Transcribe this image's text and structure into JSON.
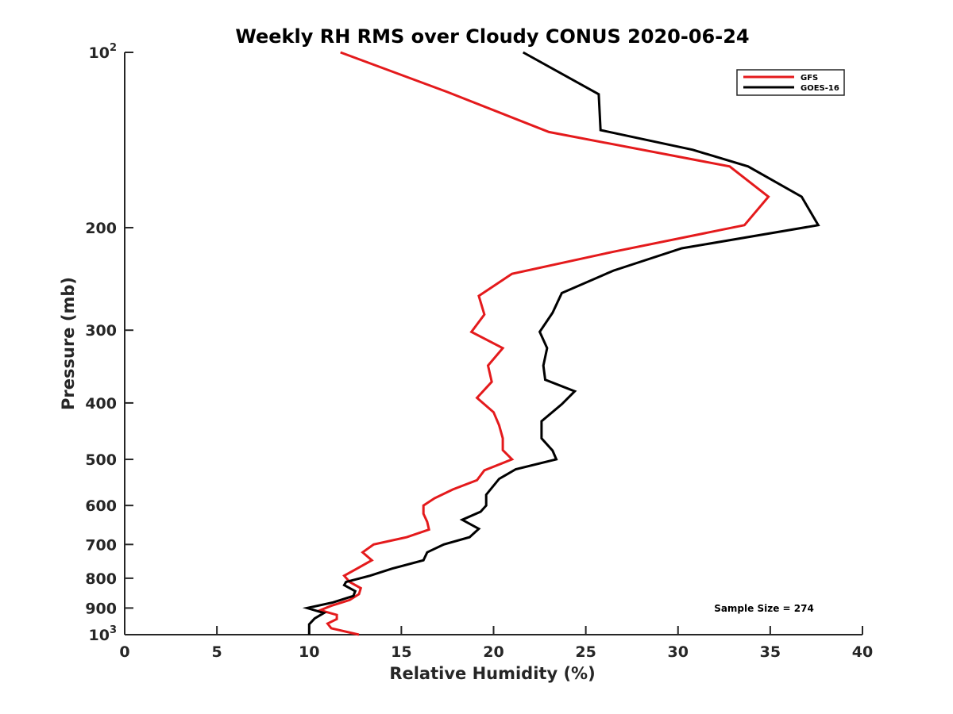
{
  "chart_data": {
    "type": "line",
    "title": "Weekly RH RMS over Cloudy CONUS 2020-06-24",
    "xlabel": "Relative Humidity (%)",
    "ylabel": "Pressure (mb)",
    "xlim": [
      0,
      40
    ],
    "ylim": [
      100,
      1000
    ],
    "y_scale": "log",
    "y_reversed": true,
    "grid": false,
    "legend_position": "top-right",
    "x_ticks": [
      0,
      5,
      10,
      15,
      20,
      25,
      30,
      35,
      40
    ],
    "y_ticks": [
      {
        "value": 100,
        "base": "10",
        "exp": "2"
      },
      {
        "value": 200,
        "label": "200"
      },
      {
        "value": 300,
        "label": "300"
      },
      {
        "value": 400,
        "label": "400"
      },
      {
        "value": 500,
        "label": "500"
      },
      {
        "value": 600,
        "label": "600"
      },
      {
        "value": 700,
        "label": "700"
      },
      {
        "value": 800,
        "label": "800"
      },
      {
        "value": 900,
        "label": "900"
      },
      {
        "value": 1000,
        "base": "10",
        "exp": "3"
      }
    ],
    "annotation": "Sample Size = 274",
    "series": [
      {
        "name": "GFS",
        "color": "#e41a1c",
        "points": [
          [
            11.7,
            100
          ],
          [
            17.5,
            117
          ],
          [
            23.0,
            137
          ],
          [
            32.8,
            157
          ],
          [
            34.9,
            177
          ],
          [
            33.6,
            198
          ],
          [
            26.5,
            220
          ],
          [
            21.0,
            240
          ],
          [
            19.2,
            262
          ],
          [
            19.5,
            282
          ],
          [
            18.8,
            302
          ],
          [
            20.5,
            322
          ],
          [
            19.7,
            345
          ],
          [
            19.9,
            368
          ],
          [
            19.1,
            392
          ],
          [
            20.0,
            415
          ],
          [
            20.3,
            437
          ],
          [
            20.5,
            460
          ],
          [
            20.5,
            482
          ],
          [
            21.0,
            500
          ],
          [
            19.5,
            522
          ],
          [
            19.1,
            543
          ],
          [
            17.8,
            563
          ],
          [
            16.8,
            583
          ],
          [
            16.2,
            600
          ],
          [
            16.2,
            620
          ],
          [
            16.4,
            640
          ],
          [
            16.5,
            660
          ],
          [
            15.3,
            680
          ],
          [
            13.5,
            700
          ],
          [
            12.9,
            722
          ],
          [
            13.4,
            745
          ],
          [
            12.6,
            770
          ],
          [
            11.9,
            792
          ],
          [
            12.2,
            812
          ],
          [
            12.8,
            832
          ],
          [
            12.7,
            852
          ],
          [
            12.2,
            872
          ],
          [
            11.2,
            892
          ],
          [
            10.6,
            908
          ],
          [
            11.5,
            925
          ],
          [
            11.5,
            940
          ],
          [
            11.0,
            957
          ],
          [
            11.2,
            975
          ],
          [
            12.7,
            1000
          ]
        ]
      },
      {
        "name": "GOES-16",
        "color": "#000000",
        "points": [
          [
            21.6,
            100
          ],
          [
            25.7,
            118
          ],
          [
            25.8,
            136
          ],
          [
            30.8,
            147
          ],
          [
            33.8,
            157
          ],
          [
            36.7,
            177
          ],
          [
            37.6,
            198
          ],
          [
            30.2,
            217
          ],
          [
            26.5,
            237
          ],
          [
            23.7,
            259
          ],
          [
            23.2,
            280
          ],
          [
            22.5,
            302
          ],
          [
            22.9,
            322
          ],
          [
            22.7,
            345
          ],
          [
            22.8,
            365
          ],
          [
            24.4,
            382
          ],
          [
            23.7,
            402
          ],
          [
            22.6,
            430
          ],
          [
            22.6,
            460
          ],
          [
            23.2,
            483
          ],
          [
            23.4,
            500
          ],
          [
            21.2,
            520
          ],
          [
            20.3,
            540
          ],
          [
            19.6,
            575
          ],
          [
            19.6,
            600
          ],
          [
            19.3,
            615
          ],
          [
            18.3,
            635
          ],
          [
            19.2,
            658
          ],
          [
            18.7,
            680
          ],
          [
            17.3,
            700
          ],
          [
            16.4,
            722
          ],
          [
            16.2,
            745
          ],
          [
            14.5,
            770
          ],
          [
            13.3,
            792
          ],
          [
            12.0,
            812
          ],
          [
            11.9,
            822
          ],
          [
            12.5,
            842
          ],
          [
            12.4,
            858
          ],
          [
            11.3,
            880
          ],
          [
            9.9,
            900
          ],
          [
            10.8,
            918
          ],
          [
            10.3,
            938
          ],
          [
            10.0,
            960
          ],
          [
            10.0,
            985
          ],
          [
            10.0,
            1000
          ]
        ]
      }
    ]
  }
}
